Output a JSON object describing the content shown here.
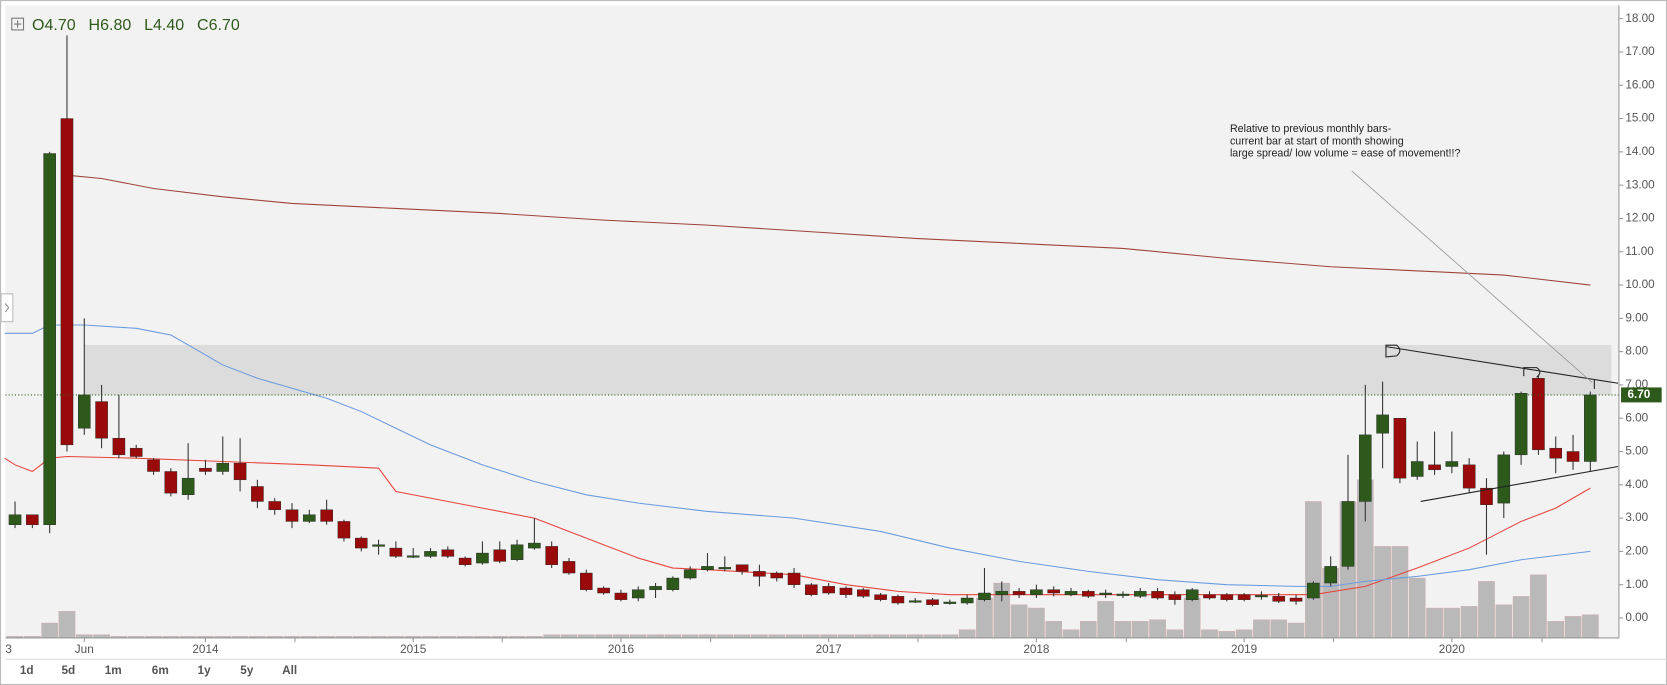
{
  "chart_data": {
    "type": "candlestick",
    "ohlc_label": [
      "O4.70",
      "H6.80",
      "L4.40",
      "C6.70"
    ],
    "range_buttons": [
      "1d",
      "5d",
      "1m",
      "6m",
      "1y",
      "5y",
      "All"
    ],
    "annotation": [
      "Relative to previous monthly bars-",
      "current bar at start of month showing",
      "large spread/ low volume = ease of movement!!?"
    ],
    "up_color": "#2d5a1b",
    "down_color": "#9b0a0a",
    "volume_color": "#b9b9b9",
    "xlim": [
      -0.56,
      92.65
    ],
    "ylim": [
      -0.6,
      18.4
    ],
    "xticks": [
      {
        "value": -1,
        "label": "3"
      },
      {
        "value": 4,
        "label": "Jun"
      },
      {
        "value": 11,
        "label": "2014"
      },
      {
        "value": 23,
        "label": "2015"
      },
      {
        "value": 35,
        "label": "2016"
      },
      {
        "value": 47,
        "label": "2017"
      },
      {
        "value": 59,
        "label": "2018"
      },
      {
        "value": 71,
        "label": "2019"
      },
      {
        "value": 83,
        "label": "2020"
      }
    ],
    "yticks": [
      {
        "value": 0,
        "label": "0.00"
      },
      {
        "value": 1,
        "label": "1.00"
      },
      {
        "value": 2,
        "label": "2.00"
      },
      {
        "value": 3,
        "label": "3.00"
      },
      {
        "value": 4,
        "label": "4.00"
      },
      {
        "value": 5,
        "label": "5.00"
      },
      {
        "value": 6,
        "label": "6.00"
      },
      {
        "value": 7,
        "label": "7.00"
      },
      {
        "value": 8,
        "label": "8.00"
      },
      {
        "value": 9,
        "label": "9.00"
      },
      {
        "value": 10,
        "label": "10.00"
      },
      {
        "value": 11,
        "label": "11.00"
      },
      {
        "value": 12,
        "label": "12.00"
      },
      {
        "value": 13,
        "label": "13.00"
      },
      {
        "value": 14,
        "label": "14.00"
      },
      {
        "value": 15,
        "label": "15.00"
      },
      {
        "value": 16,
        "label": "16.00"
      },
      {
        "value": 17,
        "label": "17.00"
      },
      {
        "value": 18,
        "label": "18.00"
      }
    ],
    "x": [
      0,
      1,
      2,
      3,
      4,
      5,
      6,
      7,
      8,
      9,
      10,
      11,
      12,
      13,
      14,
      15,
      16,
      17,
      18,
      19,
      20,
      21,
      22,
      23,
      24,
      25,
      26,
      27,
      28,
      29,
      30,
      31,
      32,
      33,
      34,
      35,
      36,
      37,
      38,
      39,
      40,
      41,
      42,
      43,
      44,
      45,
      46,
      47,
      48,
      49,
      50,
      51,
      52,
      53,
      54,
      55,
      56,
      57,
      58,
      59,
      60,
      61,
      62,
      63,
      64,
      65,
      66,
      67,
      68,
      69,
      70,
      71,
      72,
      73,
      74,
      75,
      76,
      77,
      78,
      79,
      80,
      81,
      82,
      83,
      84,
      85,
      86,
      87,
      88,
      89,
      90,
      91
    ],
    "open": [
      2.8,
      3.1,
      2.8,
      15.0,
      5.7,
      6.5,
      5.4,
      5.1,
      4.75,
      4.4,
      3.7,
      4.5,
      4.4,
      4.65,
      3.95,
      3.5,
      3.25,
      2.9,
      3.25,
      2.9,
      2.4,
      2.15,
      2.1,
      1.85,
      1.85,
      2.05,
      1.8,
      1.65,
      2.05,
      1.75,
      2.1,
      2.15,
      1.7,
      1.35,
      0.9,
      0.75,
      0.6,
      0.85,
      0.85,
      1.2,
      1.45,
      1.5,
      1.6,
      1.4,
      1.35,
      1.35,
      1.0,
      0.95,
      0.9,
      0.85,
      0.7,
      0.65,
      0.5,
      0.55,
      0.45,
      0.45,
      0.55,
      0.7,
      0.8,
      0.7,
      0.85,
      0.7,
      0.8,
      0.72,
      0.7,
      0.65,
      0.8,
      0.7,
      0.55,
      0.7,
      0.7,
      0.7,
      0.65,
      0.65,
      0.6,
      0.6,
      1.05,
      1.55,
      3.5,
      5.55,
      6.0,
      4.25,
      4.6,
      4.55,
      4.6,
      3.9,
      3.45,
      4.9,
      7.2,
      5.1,
      5.0,
      4.7
    ],
    "high": [
      3.5,
      3.1,
      14.0,
      17.5,
      9.0,
      7.0,
      6.7,
      5.2,
      4.8,
      4.5,
      5.25,
      4.75,
      5.45,
      5.4,
      4.15,
      3.6,
      3.45,
      3.25,
      3.55,
      2.95,
      2.45,
      2.35,
      2.3,
      2.1,
      2.1,
      2.15,
      1.85,
      2.3,
      2.3,
      2.35,
      3.0,
      2.3,
      1.8,
      1.45,
      0.95,
      0.85,
      0.95,
      1.05,
      1.25,
      1.55,
      1.95,
      1.85,
      1.6,
      1.6,
      1.4,
      1.5,
      1.05,
      1.05,
      0.95,
      0.9,
      0.75,
      0.7,
      0.6,
      0.6,
      0.55,
      0.7,
      1.5,
      1.1,
      0.9,
      1.0,
      0.95,
      0.9,
      0.85,
      0.85,
      0.8,
      0.9,
      0.9,
      0.8,
      0.9,
      0.8,
      0.75,
      0.75,
      0.8,
      0.75,
      0.7,
      1.1,
      1.85,
      4.9,
      7.0,
      7.1,
      6.0,
      5.3,
      5.6,
      5.6,
      4.8,
      4.2,
      5.0,
      6.8,
      7.3,
      5.45,
      5.5,
      6.8
    ],
    "low": [
      2.7,
      2.7,
      2.55,
      5.0,
      5.5,
      5.1,
      4.8,
      4.8,
      4.3,
      3.65,
      3.55,
      4.3,
      4.3,
      3.8,
      3.3,
      3.1,
      2.7,
      2.85,
      2.8,
      2.3,
      2.0,
      1.9,
      1.8,
      1.8,
      1.8,
      1.8,
      1.55,
      1.6,
      1.65,
      1.7,
      2.05,
      1.5,
      1.3,
      0.8,
      0.7,
      0.5,
      0.5,
      0.6,
      0.8,
      1.15,
      1.4,
      1.4,
      1.3,
      0.95,
      1.1,
      0.9,
      0.65,
      0.7,
      0.6,
      0.6,
      0.5,
      0.4,
      0.45,
      0.35,
      0.4,
      0.4,
      0.5,
      0.5,
      0.6,
      0.6,
      0.65,
      0.65,
      0.6,
      0.6,
      0.6,
      0.6,
      0.55,
      0.4,
      0.5,
      0.55,
      0.5,
      0.5,
      0.55,
      0.45,
      0.4,
      0.55,
      0.95,
      1.45,
      2.9,
      4.5,
      4.05,
      4.15,
      4.3,
      4.35,
      3.75,
      1.9,
      3.0,
      4.6,
      4.9,
      4.35,
      4.45,
      4.4
    ],
    "close": [
      3.1,
      2.8,
      13.95,
      5.2,
      6.7,
      5.4,
      4.9,
      4.85,
      4.4,
      3.75,
      4.2,
      4.4,
      4.65,
      4.15,
      3.5,
      3.25,
      2.9,
      3.1,
      2.9,
      2.4,
      2.1,
      2.2,
      1.85,
      1.87,
      2.0,
      1.85,
      1.6,
      1.95,
      1.7,
      2.2,
      2.25,
      1.6,
      1.35,
      0.85,
      0.75,
      0.55,
      0.85,
      0.95,
      1.2,
      1.45,
      1.55,
      1.52,
      1.4,
      1.25,
      1.2,
      1.0,
      0.7,
      0.75,
      0.7,
      0.65,
      0.55,
      0.45,
      0.52,
      0.4,
      0.48,
      0.6,
      0.75,
      0.8,
      0.7,
      0.85,
      0.75,
      0.8,
      0.65,
      0.75,
      0.72,
      0.8,
      0.6,
      0.55,
      0.85,
      0.6,
      0.55,
      0.55,
      0.68,
      0.5,
      0.5,
      1.05,
      1.55,
      3.5,
      5.5,
      6.1,
      4.2,
      4.7,
      4.45,
      4.7,
      3.9,
      3.4,
      4.9,
      6.75,
      5.05,
      4.8,
      4.7,
      6.7
    ],
    "volume": [
      -0.55,
      -0.55,
      -0.15,
      0.2,
      -0.5,
      -0.5,
      -0.55,
      -0.55,
      -0.55,
      -0.55,
      -0.55,
      -0.55,
      -0.55,
      -0.55,
      -0.55,
      -0.55,
      -0.55,
      -0.55,
      -0.55,
      -0.55,
      -0.55,
      -0.55,
      -0.55,
      -0.55,
      -0.55,
      -0.55,
      -0.55,
      -0.55,
      -0.55,
      -0.55,
      -0.55,
      -0.5,
      -0.5,
      -0.5,
      -0.5,
      -0.5,
      -0.5,
      -0.5,
      -0.5,
      -0.5,
      -0.5,
      -0.5,
      -0.5,
      -0.5,
      -0.5,
      -0.5,
      -0.5,
      -0.5,
      -0.5,
      -0.5,
      -0.5,
      -0.5,
      -0.5,
      -0.5,
      -0.5,
      -0.35,
      0.6,
      1.05,
      0.4,
      0.3,
      -0.1,
      -0.35,
      -0.1,
      0.5,
      -0.1,
      -0.1,
      -0.05,
      -0.35,
      0.6,
      -0.35,
      -0.4,
      -0.35,
      -0.05,
      -0.05,
      -0.15,
      3.5,
      1.5,
      3.5,
      4.15,
      2.15,
      2.15,
      1.2,
      0.3,
      0.3,
      0.35,
      1.1,
      0.4,
      0.65,
      1.3,
      -0.1,
      0.05,
      0.1
    ],
    "moving_averages": [
      {
        "color": "#e8453c",
        "x": [
          -0.6,
          0,
          1,
          2,
          3,
          7,
          12,
          17,
          21,
          22,
          24,
          27,
          30,
          33,
          36,
          38,
          40,
          45,
          48,
          51,
          54,
          60,
          70,
          75,
          78,
          81,
          84,
          87,
          89,
          91
        ],
        "values": [
          4.8,
          4.6,
          4.4,
          4.8,
          4.85,
          4.8,
          4.7,
          4.6,
          4.5,
          3.8,
          3.6,
          3.3,
          3.0,
          2.4,
          1.8,
          1.5,
          1.45,
          1.3,
          1.0,
          0.8,
          0.7,
          0.7,
          0.7,
          0.7,
          0.95,
          1.5,
          2.1,
          2.9,
          3.3,
          3.9
        ]
      },
      {
        "color": "#6a9be0",
        "x": [
          -0.6,
          1,
          2,
          4,
          7,
          9,
          10,
          12,
          14,
          16,
          18,
          20,
          22,
          24,
          27,
          30,
          33,
          36,
          40,
          45,
          50,
          54,
          58,
          62,
          66,
          70,
          74,
          76,
          78,
          81,
          84,
          87,
          91
        ],
        "values": [
          8.55,
          8.55,
          8.8,
          8.8,
          8.7,
          8.5,
          8.2,
          7.6,
          7.2,
          6.9,
          6.6,
          6.2,
          5.7,
          5.2,
          4.6,
          4.1,
          3.7,
          3.45,
          3.2,
          3.0,
          2.6,
          2.1,
          1.7,
          1.4,
          1.15,
          1.0,
          0.95,
          0.95,
          1.1,
          1.25,
          1.45,
          1.75,
          2.0
        ]
      },
      {
        "color": "#a0443a",
        "x": [
          3,
          5,
          8,
          12,
          16,
          22,
          28,
          34,
          40,
          46,
          52,
          58,
          64,
          70,
          76,
          82,
          86,
          91
        ],
        "values": [
          13.3,
          13.2,
          12.9,
          12.65,
          12.45,
          12.3,
          12.15,
          11.95,
          11.8,
          11.6,
          11.4,
          11.25,
          11.1,
          10.8,
          10.55,
          10.4,
          10.3,
          10.0
        ]
      }
    ],
    "zone": [
      6.7,
      8.2
    ],
    "last_price": {
      "value": 6.7,
      "label": "6.70"
    },
    "trendlines": [
      {
        "x": [
          79.2,
          92.6
        ],
        "values": [
          8.15,
          7.05
        ]
      },
      {
        "x": [
          81.2,
          92.6
        ],
        "values": [
          3.5,
          4.55
        ]
      }
    ]
  }
}
